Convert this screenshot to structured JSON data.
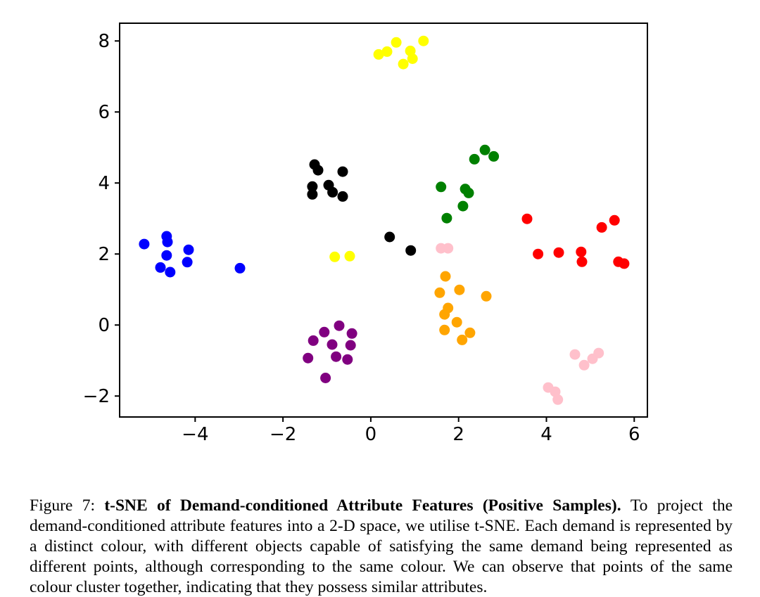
{
  "figure": {
    "caption": {
      "prefix": "Figure 7: ",
      "bold": "t-SNE of Demand-conditioned Attribute Features (Positive Samples). ",
      "rest": "To project the demand-conditioned attribute features into a 2-D space, we utilise t-SNE. Each demand is represented by a distinct colour, with different objects capable of satisfying the same demand being represented as different points, although corresponding to the same colour. We can observe that points of the same colour cluster together, indicating that they possess similar attributes."
    }
  },
  "chart_data": {
    "type": "scatter",
    "title": "",
    "xlabel": "",
    "ylabel": "",
    "xlim": [
      -5.72,
      6.3
    ],
    "ylim": [
      -2.59,
      8.5
    ],
    "x_ticks": [
      -4,
      -2,
      0,
      2,
      4,
      6
    ],
    "x_tick_labels": [
      "−4",
      "−2",
      "0",
      "2",
      "4",
      "6"
    ],
    "y_ticks": [
      8,
      6,
      4,
      2,
      0,
      -2
    ],
    "y_tick_labels": [
      "8",
      "6",
      "4",
      "2",
      "0",
      "−2"
    ],
    "grid": false,
    "legend": "none",
    "marker_size": 7.5,
    "series": [
      {
        "name": "yellow",
        "color": "#ffff00",
        "points": [
          [
            0.18,
            7.62
          ],
          [
            0.37,
            7.7
          ],
          [
            0.58,
            7.96
          ],
          [
            1.2,
            8.0
          ],
          [
            0.9,
            7.72
          ],
          [
            0.95,
            7.5
          ],
          [
            0.74,
            7.35
          ],
          [
            -0.82,
            1.92
          ],
          [
            -0.48,
            1.94
          ]
        ]
      },
      {
        "name": "black",
        "color": "#000000",
        "points": [
          [
            -1.28,
            4.52
          ],
          [
            -1.2,
            4.36
          ],
          [
            -0.64,
            4.32
          ],
          [
            -1.33,
            3.9
          ],
          [
            -1.33,
            3.68
          ],
          [
            -0.96,
            3.94
          ],
          [
            -0.87,
            3.74
          ],
          [
            -0.64,
            3.62
          ],
          [
            0.43,
            2.48
          ],
          [
            0.91,
            2.1
          ]
        ]
      },
      {
        "name": "blue",
        "color": "#0000ff",
        "points": [
          [
            -5.16,
            2.28
          ],
          [
            -4.65,
            2.5
          ],
          [
            -4.63,
            2.34
          ],
          [
            -4.65,
            1.96
          ],
          [
            -4.15,
            2.12
          ],
          [
            -4.18,
            1.77
          ],
          [
            -4.79,
            1.62
          ],
          [
            -4.57,
            1.49
          ],
          [
            -2.98,
            1.6
          ]
        ]
      },
      {
        "name": "green",
        "color": "#008000",
        "points": [
          [
            2.36,
            4.67
          ],
          [
            2.6,
            4.93
          ],
          [
            2.8,
            4.75
          ],
          [
            1.6,
            3.89
          ],
          [
            2.15,
            3.83
          ],
          [
            2.23,
            3.72
          ],
          [
            2.1,
            3.35
          ],
          [
            1.73,
            3.01
          ]
        ]
      },
      {
        "name": "red",
        "color": "#ff0000",
        "points": [
          [
            3.56,
            2.99
          ],
          [
            5.26,
            2.75
          ],
          [
            5.55,
            2.95
          ],
          [
            3.81,
            2.0
          ],
          [
            4.28,
            2.04
          ],
          [
            4.79,
            2.06
          ],
          [
            4.81,
            1.78
          ],
          [
            5.64,
            1.78
          ],
          [
            5.77,
            1.73
          ]
        ]
      },
      {
        "name": "pink",
        "color": "#ffc0cb",
        "points": [
          [
            1.6,
            2.16
          ],
          [
            1.76,
            2.16
          ],
          [
            4.65,
            -0.83
          ],
          [
            4.86,
            -1.13
          ],
          [
            5.05,
            -0.95
          ],
          [
            5.19,
            -0.79
          ],
          [
            4.04,
            -1.76
          ],
          [
            4.2,
            -1.88
          ],
          [
            4.26,
            -2.1
          ]
        ]
      },
      {
        "name": "orange",
        "color": "#ffa500",
        "points": [
          [
            1.7,
            1.37
          ],
          [
            1.57,
            0.91
          ],
          [
            2.02,
            0.99
          ],
          [
            2.63,
            0.81
          ],
          [
            1.76,
            0.48
          ],
          [
            1.68,
            0.3
          ],
          [
            1.96,
            0.08
          ],
          [
            1.68,
            -0.14
          ],
          [
            2.26,
            -0.22
          ],
          [
            2.08,
            -0.42
          ]
        ]
      },
      {
        "name": "purple",
        "color": "#800080",
        "points": [
          [
            -0.72,
            -0.02
          ],
          [
            -1.06,
            -0.2
          ],
          [
            -0.43,
            -0.24
          ],
          [
            -1.31,
            -0.44
          ],
          [
            -0.88,
            -0.55
          ],
          [
            -0.46,
            -0.57
          ],
          [
            -1.43,
            -0.93
          ],
          [
            -0.79,
            -0.89
          ],
          [
            -0.53,
            -0.97
          ],
          [
            -1.03,
            -1.49
          ]
        ]
      }
    ]
  }
}
